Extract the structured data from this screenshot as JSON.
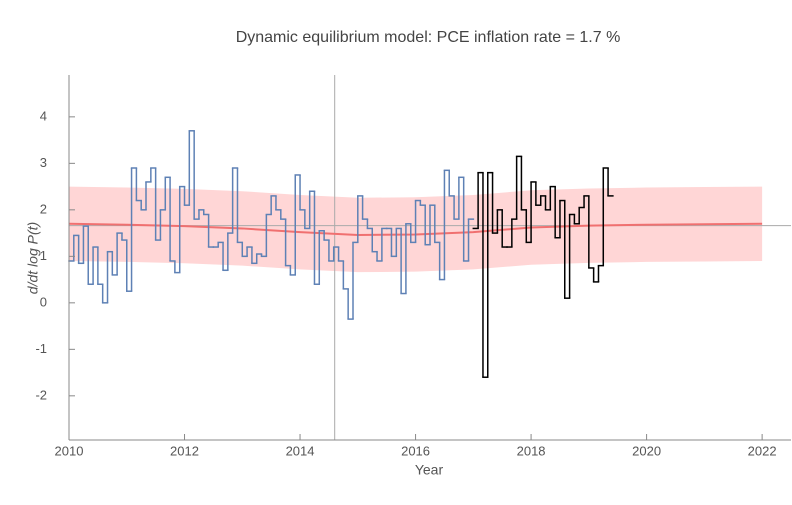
{
  "chart_data": {
    "type": "step",
    "title": "Dynamic equilibrium model: PCE inflation rate = 1.7 %",
    "x_label": "Year",
    "y_label": "d/dt log P(t)",
    "xlim": [
      2010,
      2022.5
    ],
    "ylim": [
      -2.95,
      4.9
    ],
    "xticks": [
      2010,
      2012,
      2014,
      2016,
      2018,
      2020,
      2022
    ],
    "yticks": [
      -2,
      -1,
      0,
      1,
      2,
      3,
      4
    ],
    "reference_lines": {
      "x": 2014.6,
      "y": 1.66
    },
    "band": {
      "color": "#ffd6d6",
      "x": [
        2010,
        2011,
        2012,
        2013,
        2014,
        2015,
        2016,
        2017,
        2018,
        2019,
        2020,
        2021,
        2022
      ],
      "upper": [
        2.5,
        2.48,
        2.45,
        2.4,
        2.32,
        2.26,
        2.27,
        2.32,
        2.42,
        2.46,
        2.48,
        2.49,
        2.5
      ],
      "lower": [
        0.9,
        0.88,
        0.85,
        0.8,
        0.72,
        0.66,
        0.67,
        0.72,
        0.82,
        0.86,
        0.88,
        0.89,
        0.9
      ]
    },
    "trend": {
      "color": "#f07070",
      "x": [
        2010,
        2011,
        2012,
        2013,
        2014,
        2015,
        2016,
        2017,
        2018,
        2019,
        2020,
        2021,
        2022
      ],
      "values": [
        1.7,
        1.68,
        1.65,
        1.6,
        1.52,
        1.46,
        1.47,
        1.52,
        1.62,
        1.66,
        1.68,
        1.69,
        1.7
      ]
    },
    "series": [
      {
        "color": "#5e81b5",
        "x": [
          2010,
          2010.083,
          2010.167,
          2010.25,
          2010.333,
          2010.417,
          2010.5,
          2010.583,
          2010.667,
          2010.75,
          2010.833,
          2010.917,
          2011,
          2011.083,
          2011.167,
          2011.25,
          2011.333,
          2011.417,
          2011.5,
          2011.583,
          2011.667,
          2011.75,
          2011.833,
          2011.917,
          2012,
          2012.083,
          2012.167,
          2012.25,
          2012.333,
          2012.417,
          2012.5,
          2012.583,
          2012.667,
          2012.75,
          2012.833,
          2012.917,
          2013,
          2013.083,
          2013.167,
          2013.25,
          2013.333,
          2013.417,
          2013.5,
          2013.583,
          2013.667,
          2013.75,
          2013.833,
          2013.917,
          2014,
          2014.083,
          2014.167,
          2014.25,
          2014.333,
          2014.417,
          2014.5,
          2014.583,
          2014.667,
          2014.75,
          2014.833,
          2014.917,
          2015,
          2015.083,
          2015.167,
          2015.25,
          2015.333,
          2015.417,
          2015.5,
          2015.583,
          2015.667,
          2015.75,
          2015.833,
          2015.917,
          2016,
          2016.083,
          2016.167,
          2016.25,
          2016.333,
          2016.417,
          2016.5,
          2016.583,
          2016.667,
          2016.75,
          2016.833,
          2016.917
        ],
        "values": [
          0.9,
          1.45,
          0.85,
          1.65,
          0.4,
          1.2,
          0.4,
          0.0,
          1.1,
          0.6,
          1.5,
          1.35,
          0.25,
          2.9,
          2.2,
          2.0,
          2.6,
          2.9,
          1.35,
          2.0,
          2.7,
          0.9,
          0.65,
          2.5,
          2.1,
          3.7,
          1.8,
          2.0,
          1.9,
          1.2,
          1.2,
          1.3,
          0.7,
          1.5,
          2.9,
          1.3,
          1.0,
          1.2,
          0.85,
          1.05,
          1.0,
          1.9,
          2.3,
          2.0,
          1.8,
          0.8,
          0.6,
          2.75,
          2.0,
          1.6,
          2.4,
          0.4,
          1.55,
          1.35,
          0.9,
          1.2,
          0.9,
          0.3,
          -0.35,
          1.3,
          2.3,
          1.8,
          1.6,
          1.1,
          0.9,
          1.6,
          1.6,
          1.0,
          1.6,
          0.2,
          1.7,
          1.3,
          2.2,
          2.1,
          1.25,
          2.1,
          1.3,
          0.5,
          2.85,
          2.3,
          1.8,
          2.7,
          0.9,
          1.8
        ]
      },
      {
        "color": "#000000",
        "x": [
          2017,
          2017.083,
          2017.167,
          2017.25,
          2017.333,
          2017.417,
          2017.5,
          2017.583,
          2017.667,
          2017.75,
          2017.833,
          2017.917,
          2018,
          2018.083,
          2018.167,
          2018.25,
          2018.333,
          2018.417,
          2018.5,
          2018.583,
          2018.667,
          2018.75,
          2018.833,
          2018.917,
          2019,
          2019.083,
          2019.167,
          2019.25,
          2019.333
        ],
        "values": [
          1.6,
          2.8,
          -1.6,
          2.8,
          1.5,
          2.0,
          1.2,
          1.2,
          1.8,
          3.15,
          2.0,
          1.3,
          2.6,
          2.1,
          2.3,
          2.0,
          2.5,
          1.4,
          2.2,
          0.1,
          1.9,
          1.7,
          2.05,
          2.3,
          0.75,
          0.45,
          0.8,
          2.9,
          2.3
        ]
      }
    ]
  }
}
